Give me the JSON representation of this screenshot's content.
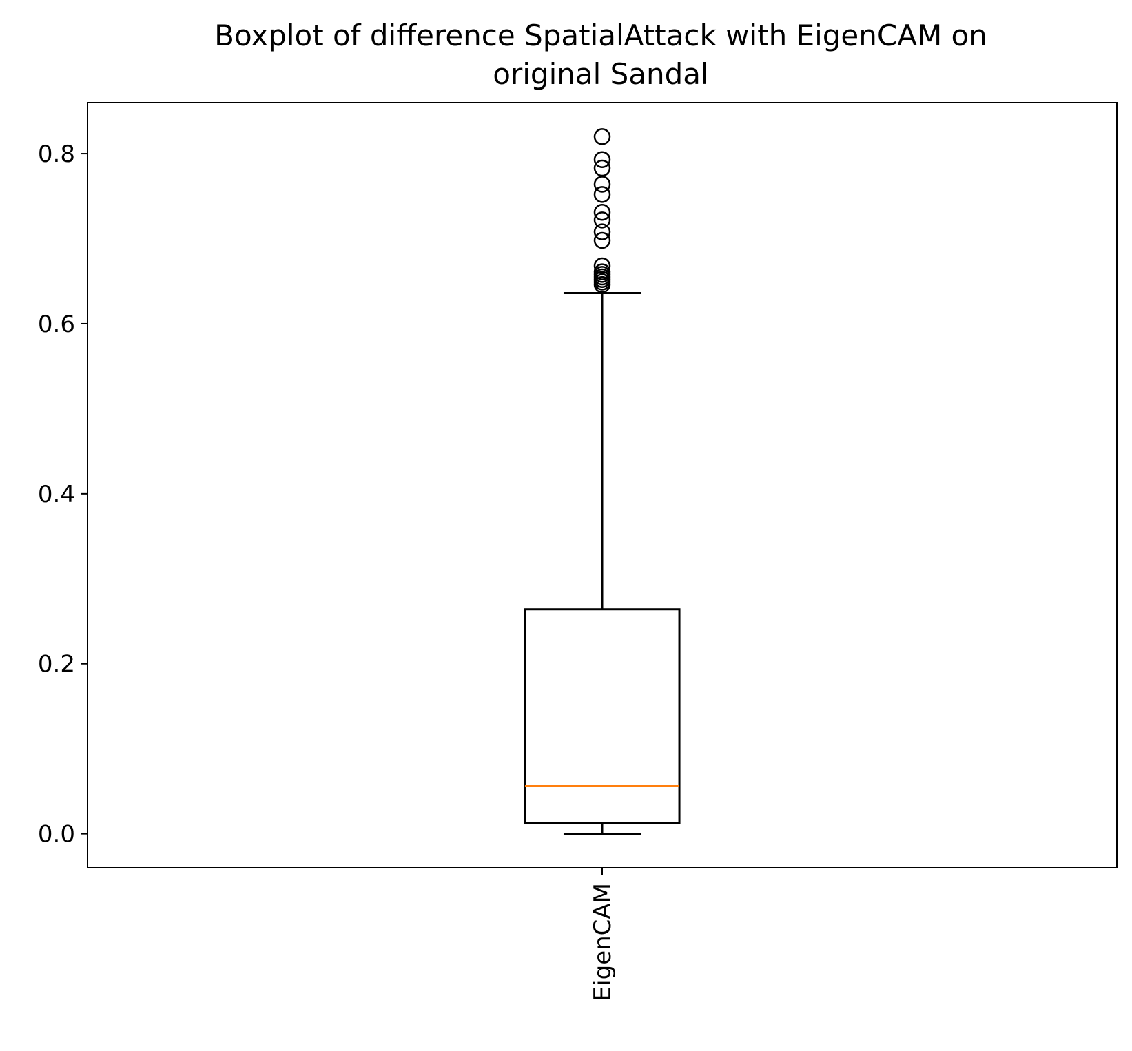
{
  "chart_data": {
    "type": "boxplot",
    "title_lines": [
      "Boxplot of difference SpatialAttack with EigenCAM on",
      "original Sandal"
    ],
    "xlabel": "",
    "ylabel": "",
    "categories": [
      "EigenCAM"
    ],
    "ylim": [
      -0.04,
      0.86
    ],
    "yticks": [
      0.0,
      0.2,
      0.4,
      0.6,
      0.8
    ],
    "ytick_labels": [
      "0.0",
      "0.2",
      "0.4",
      "0.6",
      "0.8"
    ],
    "grid": false,
    "boxes": [
      {
        "name": "EigenCAM",
        "whisker_low": 0.0,
        "q1": 0.013,
        "median": 0.056,
        "q3": 0.264,
        "whisker_high": 0.636,
        "fliers": [
          0.646,
          0.649,
          0.652,
          0.655,
          0.658,
          0.661,
          0.668,
          0.698,
          0.708,
          0.722,
          0.731,
          0.752,
          0.764,
          0.783,
          0.793,
          0.82
        ]
      }
    ],
    "colors": {
      "box": "#000000",
      "median": "#ff7f0e",
      "flier": "#000000"
    }
  }
}
